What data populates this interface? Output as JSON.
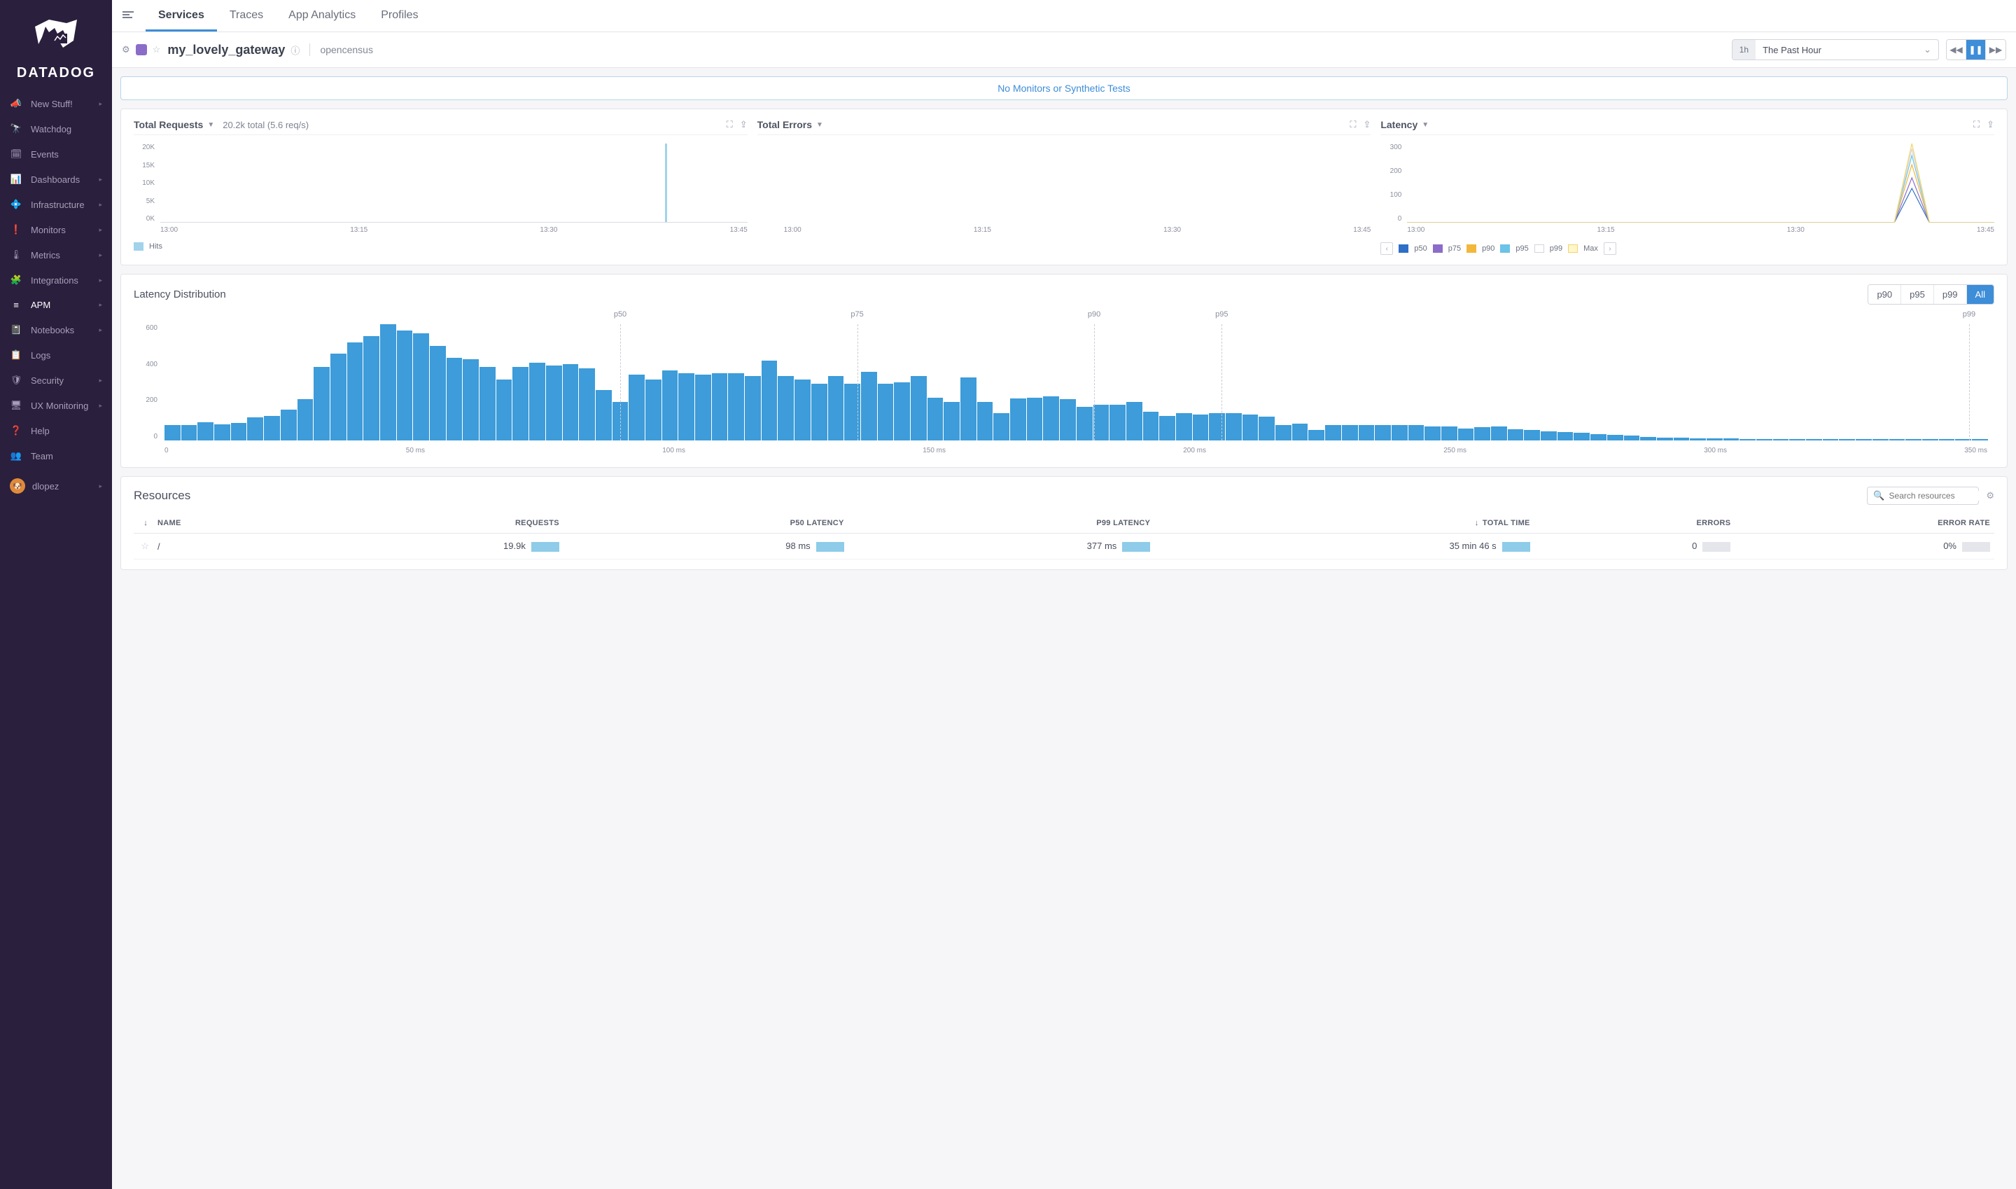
{
  "brand": "DATADOG",
  "sidebar": {
    "items": [
      {
        "label": "New Stuff!",
        "icon": "megaphone",
        "arrow": true
      },
      {
        "label": "Watchdog",
        "icon": "binoculars",
        "arrow": false
      },
      {
        "label": "Events",
        "icon": "calendar",
        "arrow": false
      },
      {
        "label": "Dashboards",
        "icon": "chart",
        "arrow": true
      },
      {
        "label": "Infrastructure",
        "icon": "network",
        "arrow": true
      },
      {
        "label": "Monitors",
        "icon": "alert",
        "arrow": true
      },
      {
        "label": "Metrics",
        "icon": "gauge",
        "arrow": true
      },
      {
        "label": "Integrations",
        "icon": "puzzle",
        "arrow": true
      },
      {
        "label": "APM",
        "icon": "apm",
        "arrow": true,
        "active": true
      },
      {
        "label": "Notebooks",
        "icon": "book",
        "arrow": true
      },
      {
        "label": "Logs",
        "icon": "logs",
        "arrow": false
      },
      {
        "label": "Security",
        "icon": "shield",
        "arrow": true
      },
      {
        "label": "UX Monitoring",
        "icon": "ux",
        "arrow": true
      },
      {
        "label": "Help",
        "icon": "help",
        "arrow": false
      },
      {
        "label": "Team",
        "icon": "team",
        "arrow": false
      }
    ],
    "user": {
      "name": "dlopez",
      "avatar_color": "#de8b3f"
    }
  },
  "tabs": [
    "Services",
    "Traces",
    "App Analytics",
    "Profiles"
  ],
  "active_tab": "Services",
  "header": {
    "service_name": "my_lovely_gateway",
    "library": "opencensus",
    "color": "#8c6cc9"
  },
  "time": {
    "short": "1h",
    "label": "The Past Hour"
  },
  "banner": "No Monitors or Synthetic Tests",
  "charts": {
    "requests": {
      "title": "Total Requests",
      "subtitle": "20.2k total (5.6 req/s)",
      "yticks": [
        "20K",
        "15K",
        "10K",
        "5K",
        "0K"
      ],
      "xticks": [
        "13:00",
        "13:15",
        "13:30",
        "13:45"
      ],
      "spike": {
        "pos_pct": 86,
        "width": 3,
        "color": "#a1d3ea"
      },
      "legend": [
        {
          "label": "Hits",
          "color": "#a1d3ea"
        }
      ]
    },
    "errors": {
      "title": "Total Errors",
      "xticks": [
        "13:00",
        "13:15",
        "13:30",
        "13:45"
      ]
    },
    "latency": {
      "title": "Latency",
      "yticks": [
        "300",
        "200",
        "100",
        "0"
      ],
      "xticks": [
        "13:00",
        "13:15",
        "13:30",
        "13:45"
      ],
      "spike_pos_pct": 86,
      "series": [
        {
          "name": "p50",
          "color": "#2e6fc7",
          "peak": 130
        },
        {
          "name": "p75",
          "color": "#8c6cc9",
          "peak": 170
        },
        {
          "name": "p90",
          "color": "#f2b73c",
          "peak": 220
        },
        {
          "name": "p95",
          "color": "#6bc3e8",
          "peak": 255
        },
        {
          "name": "p99",
          "color": "#ffffff",
          "peak": 280,
          "border": "#d3d5dd"
        },
        {
          "name": "Max",
          "color": "#fff6cc",
          "peak": 300,
          "border": "#f2d56b"
        }
      ]
    }
  },
  "latency_dist": {
    "title": "Latency Distribution",
    "buttons": [
      "p90",
      "p95",
      "p99",
      "All"
    ],
    "active": "All",
    "markers": [
      {
        "label": "p50",
        "pos": 25
      },
      {
        "label": "p75",
        "pos": 38
      },
      {
        "label": "p90",
        "pos": 51
      },
      {
        "label": "p95",
        "pos": 58
      },
      {
        "label": "p99",
        "pos": 99
      }
    ],
    "yticks": [
      "600",
      "400",
      "200",
      "0"
    ],
    "ymax": 760,
    "xticks": [
      "0",
      "50 ms",
      "100 ms",
      "150 ms",
      "200 ms",
      "250 ms",
      "300 ms",
      "350 ms"
    ],
    "bar_color": "#3d9cd9",
    "bars": [
      100,
      100,
      120,
      105,
      115,
      150,
      160,
      200,
      270,
      480,
      570,
      640,
      680,
      760,
      720,
      700,
      620,
      540,
      530,
      480,
      400,
      480,
      510,
      490,
      500,
      470,
      330,
      250,
      430,
      400,
      460,
      440,
      430,
      440,
      440,
      420,
      520,
      420,
      400,
      370,
      420,
      370,
      450,
      370,
      380,
      420,
      280,
      250,
      410,
      250,
      180,
      275,
      280,
      290,
      270,
      220,
      235,
      235,
      250,
      190,
      160,
      180,
      170,
      180,
      180,
      170,
      155,
      100,
      110,
      70,
      100,
      100,
      100,
      100,
      100,
      100,
      90,
      90,
      80,
      85,
      90,
      75,
      70,
      60,
      55,
      50,
      40,
      35,
      30,
      25,
      20,
      18,
      15,
      15,
      12,
      10,
      10,
      10,
      10,
      10,
      10,
      10,
      8,
      8,
      8,
      8,
      8,
      8,
      8,
      8
    ]
  },
  "resources": {
    "title": "Resources",
    "search_placeholder": "Search resources",
    "columns": [
      "",
      "NAME",
      "REQUESTS",
      "P50 LATENCY",
      "P99 LATENCY",
      "TOTAL TIME",
      "ERRORS",
      "ERROR RATE"
    ],
    "rows": [
      {
        "name": "/",
        "requests": "19.9k",
        "p50": "98 ms",
        "p99": "377 ms",
        "total": "35 min 46 s",
        "errors": "0",
        "rate": "0%"
      }
    ]
  },
  "colors": {
    "primary": "#3d8dd8",
    "bar": "#3d9cd9",
    "bg": "#f6f6f8"
  }
}
